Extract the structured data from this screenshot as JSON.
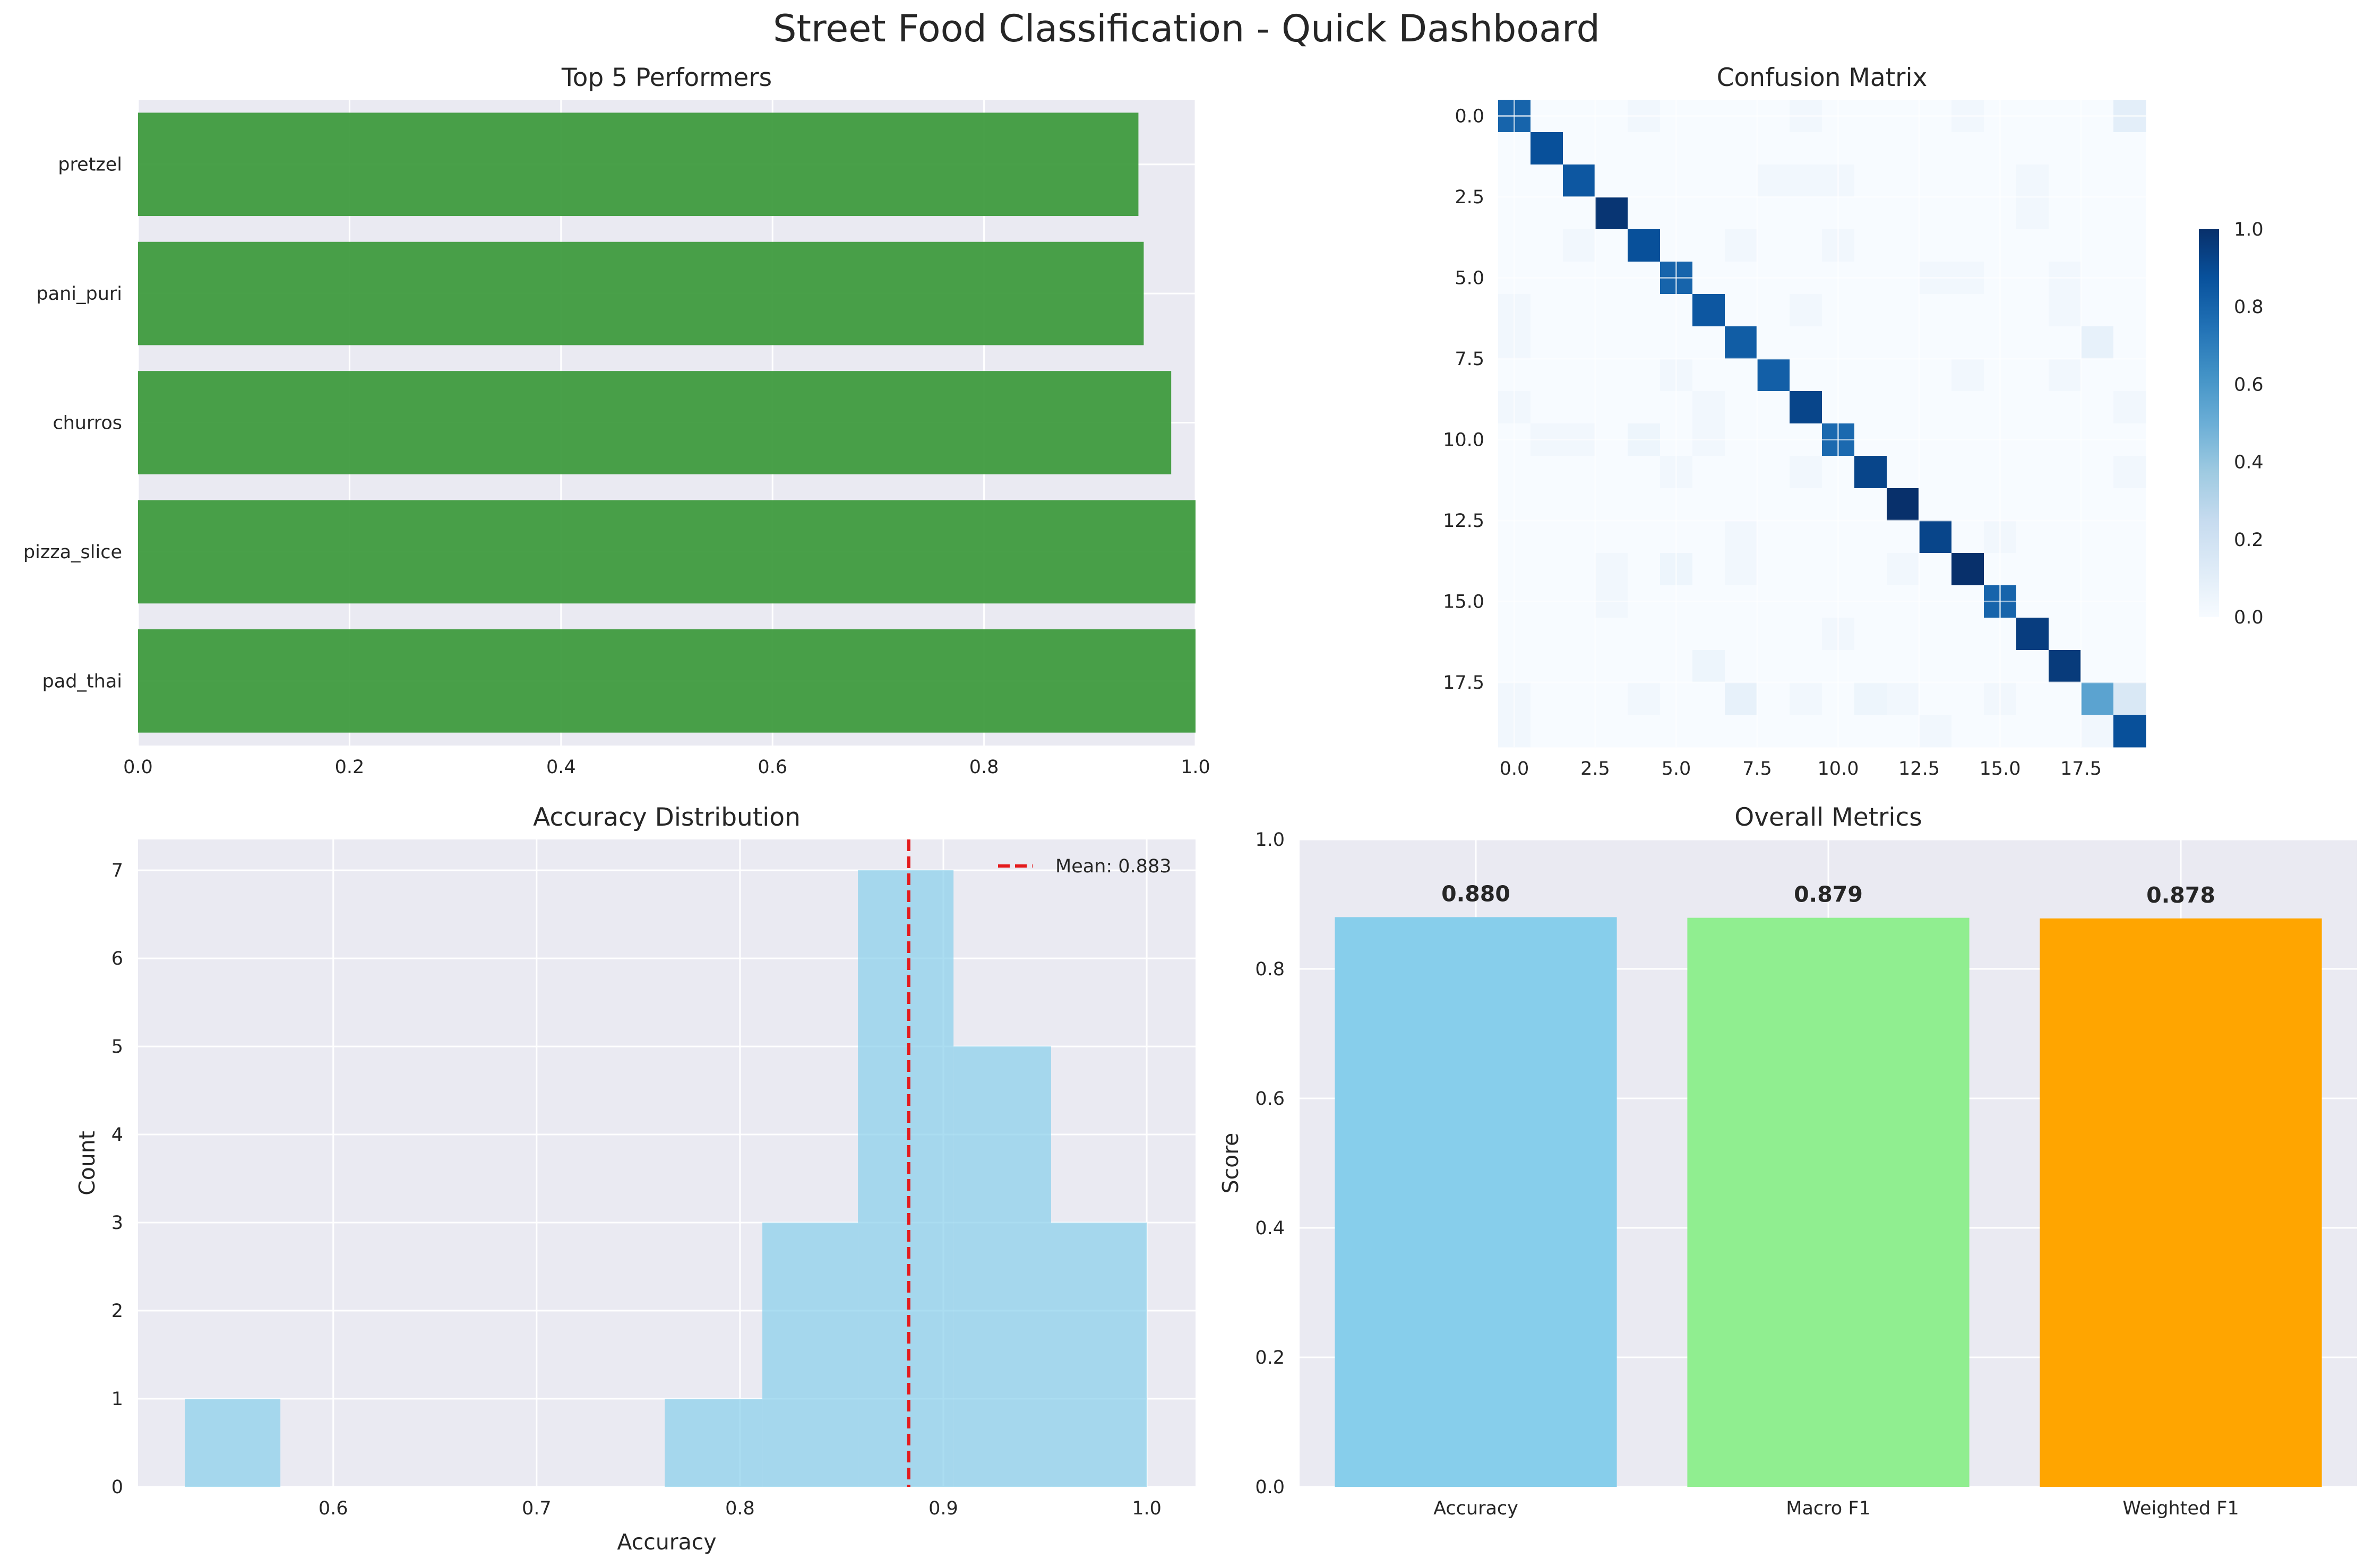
{
  "suptitle": "Street Food Classification - Quick Dashboard",
  "chart_data": [
    {
      "type": "bar",
      "orientation": "horizontal",
      "title": "Top 5 Performers",
      "categories": [
        "pretzel",
        "pani_puri",
        "churros",
        "pizza_slice",
        "pad_thai"
      ],
      "values": [
        0.946,
        0.951,
        0.977,
        1.0,
        1.0
      ],
      "xlim": [
        0,
        1.0
      ],
      "xticks": [
        "0.0",
        "0.2",
        "0.4",
        "0.6",
        "0.8",
        "1.0"
      ],
      "color": "#3a983a",
      "grid": true
    },
    {
      "type": "heatmap",
      "title": "Confusion Matrix",
      "size": 20,
      "xticks": [
        "0.0",
        "2.5",
        "5.0",
        "7.5",
        "10.0",
        "12.5",
        "15.0",
        "17.5"
      ],
      "yticks": [
        "0.0",
        "2.5",
        "5.0",
        "7.5",
        "10.0",
        "12.5",
        "15.0",
        "17.5"
      ],
      "colormap": "Blues",
      "colorbar_ticks": [
        "0.0",
        "0.2",
        "0.4",
        "0.6",
        "0.8",
        "1.0"
      ],
      "diagonal": [
        0.8,
        0.88,
        0.85,
        0.98,
        0.88,
        0.8,
        0.85,
        0.83,
        0.82,
        0.92,
        0.78,
        0.92,
        1.0,
        0.92,
        1.0,
        0.8,
        0.95,
        0.96,
        0.55,
        0.88
      ],
      "off_diagonal": [
        {
          "row": 0,
          "col": 4,
          "value": 0.03
        },
        {
          "row": 0,
          "col": 9,
          "value": 0.03
        },
        {
          "row": 0,
          "col": 14,
          "value": 0.03
        },
        {
          "row": 0,
          "col": 19,
          "value": 0.1
        },
        {
          "row": 2,
          "col": 8,
          "value": 0.03
        },
        {
          "row": 2,
          "col": 9,
          "value": 0.03
        },
        {
          "row": 2,
          "col": 10,
          "value": 0.03
        },
        {
          "row": 2,
          "col": 16,
          "value": 0.03
        },
        {
          "row": 3,
          "col": 16,
          "value": 0.03
        },
        {
          "row": 4,
          "col": 2,
          "value": 0.03
        },
        {
          "row": 4,
          "col": 7,
          "value": 0.03
        },
        {
          "row": 4,
          "col": 10,
          "value": 0.03
        },
        {
          "row": 5,
          "col": 13,
          "value": 0.03
        },
        {
          "row": 5,
          "col": 14,
          "value": 0.03
        },
        {
          "row": 5,
          "col": 17,
          "value": 0.03
        },
        {
          "row": 6,
          "col": 0,
          "value": 0.03
        },
        {
          "row": 6,
          "col": 9,
          "value": 0.03
        },
        {
          "row": 6,
          "col": 17,
          "value": 0.03
        },
        {
          "row": 7,
          "col": 0,
          "value": 0.03
        },
        {
          "row": 7,
          "col": 18,
          "value": 0.08
        },
        {
          "row": 8,
          "col": 5,
          "value": 0.03
        },
        {
          "row": 8,
          "col": 14,
          "value": 0.03
        },
        {
          "row": 8,
          "col": 17,
          "value": 0.03
        },
        {
          "row": 9,
          "col": 0,
          "value": 0.03
        },
        {
          "row": 9,
          "col": 6,
          "value": 0.03
        },
        {
          "row": 9,
          "col": 19,
          "value": 0.03
        },
        {
          "row": 10,
          "col": 1,
          "value": 0.03
        },
        {
          "row": 10,
          "col": 2,
          "value": 0.03
        },
        {
          "row": 10,
          "col": 4,
          "value": 0.05
        },
        {
          "row": 10,
          "col": 6,
          "value": 0.03
        },
        {
          "row": 11,
          "col": 5,
          "value": 0.03
        },
        {
          "row": 11,
          "col": 9,
          "value": 0.03
        },
        {
          "row": 11,
          "col": 19,
          "value": 0.03
        },
        {
          "row": 13,
          "col": 7,
          "value": 0.03
        },
        {
          "row": 13,
          "col": 15,
          "value": 0.03
        },
        {
          "row": 14,
          "col": 3,
          "value": 0.03
        },
        {
          "row": 14,
          "col": 5,
          "value": 0.05
        },
        {
          "row": 14,
          "col": 7,
          "value": 0.03
        },
        {
          "row": 14,
          "col": 12,
          "value": 0.03
        },
        {
          "row": 15,
          "col": 3,
          "value": 0.03
        },
        {
          "row": 16,
          "col": 10,
          "value": 0.03
        },
        {
          "row": 17,
          "col": 6,
          "value": 0.05
        },
        {
          "row": 18,
          "col": 0,
          "value": 0.03
        },
        {
          "row": 18,
          "col": 4,
          "value": 0.03
        },
        {
          "row": 18,
          "col": 7,
          "value": 0.08
        },
        {
          "row": 18,
          "col": 9,
          "value": 0.03
        },
        {
          "row": 18,
          "col": 11,
          "value": 0.05
        },
        {
          "row": 18,
          "col": 12,
          "value": 0.03
        },
        {
          "row": 18,
          "col": 15,
          "value": 0.03
        },
        {
          "row": 18,
          "col": 19,
          "value": 0.15
        },
        {
          "row": 19,
          "col": 0,
          "value": 0.03
        },
        {
          "row": 19,
          "col": 13,
          "value": 0.03
        },
        {
          "row": 19,
          "col": 18,
          "value": 0.03
        }
      ]
    },
    {
      "type": "histogram",
      "title": "Accuracy Distribution",
      "xlabel": "Accuracy",
      "ylabel": "Count",
      "bins": [
        {
          "x0": 0.527,
          "x1": 0.574,
          "count": 1
        },
        {
          "x0": 0.574,
          "x1": 0.621,
          "count": 0
        },
        {
          "x0": 0.621,
          "x1": 0.669,
          "count": 0
        },
        {
          "x0": 0.669,
          "x1": 0.716,
          "count": 0
        },
        {
          "x0": 0.716,
          "x1": 0.763,
          "count": 0
        },
        {
          "x0": 0.763,
          "x1": 0.811,
          "count": 1
        },
        {
          "x0": 0.811,
          "x1": 0.858,
          "count": 3
        },
        {
          "x0": 0.858,
          "x1": 0.905,
          "count": 7
        },
        {
          "x0": 0.905,
          "x1": 0.953,
          "count": 5
        },
        {
          "x0": 0.953,
          "x1": 1.0,
          "count": 3
        }
      ],
      "mean": 0.883,
      "mean_label": "Mean: 0.883",
      "xlim": [
        0.504,
        1.024
      ],
      "ylim": [
        0,
        7.35
      ],
      "xticks": [
        "0.6",
        "0.7",
        "0.8",
        "0.9",
        "1.0"
      ],
      "yticks": [
        "0",
        "1",
        "2",
        "3",
        "4",
        "5",
        "6",
        "7"
      ],
      "color": "#87ceeb",
      "mean_color": "#e41a1c",
      "legend_position": "upper right"
    },
    {
      "type": "bar",
      "title": "Overall Metrics",
      "ylabel": "Score",
      "categories": [
        "Accuracy",
        "Macro F1",
        "Weighted F1"
      ],
      "values": [
        0.88,
        0.879,
        0.878
      ],
      "value_labels": [
        "0.880",
        "0.879",
        "0.878"
      ],
      "colors": [
        "#87ceeb",
        "#90ee90",
        "#ffa500"
      ],
      "ylim": [
        0,
        1.0
      ],
      "yticks": [
        "0.0",
        "0.2",
        "0.4",
        "0.6",
        "0.8",
        "1.0"
      ]
    }
  ]
}
